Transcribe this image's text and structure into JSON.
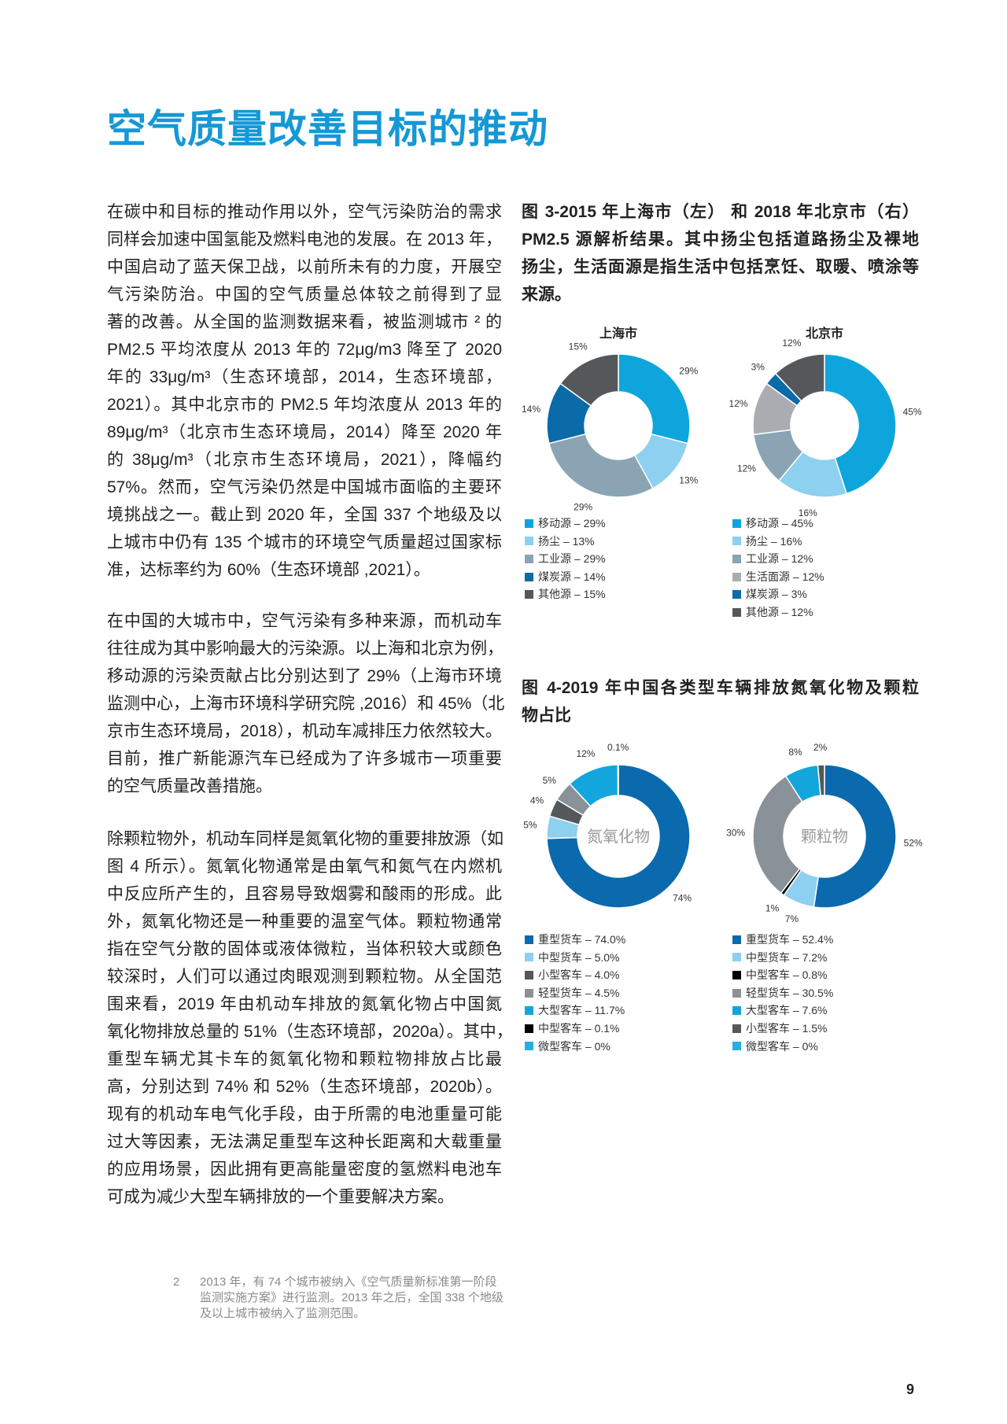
{
  "title": "空气质量改善目标的推动",
  "body": {
    "paragraphs": [
      [
        "在碳中和目标的推动作用以外，空气污染防治的需求",
        "同样会加速中国氢能及燃料电池的发展。在 2013 年，",
        "中国启动了蓝天保卫战，以前所未有的力度，开展空",
        "气污染防治。中国的空气质量总体较之前得到了显",
        "著的改善。从全国的监测数据来看，被监测城市 ² 的",
        "PM2.5 平均浓度从 2013 年的 72μg/m3 降至了 2020",
        "年的 33μg/m³（生态环境部，2014，生态环境部，",
        "2021）。其中北京市的 PM2.5 年均浓度从 2013 年的",
        "89μg/m³（北京市生态环境局，2014）降至 2020 年",
        "的 38μg/m³（北京市生态环境局，2021），降幅约",
        "57%。然而，空气污染仍然是中国城市面临的主要环",
        "境挑战之一。截止到 2020 年，全国 337 个地级及以",
        "上城市中仍有 135 个城市的环境空气质量超过国家标",
        "准，达标率约为 60%（生态环境部 ,2021）。"
      ],
      [
        "在中国的大城市中，空气污染有多种来源，而机动车",
        "往往成为其中影响最大的污染源。以上海和北京为例，",
        "移动源的污染贡献占比分别达到了 29%（上海市环境",
        "监测中心，上海市环境科学研究院 ,2016）和 45%（北",
        "京市生态环境局，2018），机动车减排压力依然较大。",
        "目前，推广新能源汽车已经成为了许多城市一项重要",
        "的空气质量改善措施。"
      ],
      [
        "除颗粒物外，机动车同样是氮氧化物的重要排放源（如",
        "图 4 所示）。氮氧化物通常是由氧气和氮气在内燃机",
        "中反应所产生的，且容易导致烟雾和酸雨的形成。此",
        "外，氮氧化物还是一种重要的温室气体。颗粒物通常",
        "指在空气分散的固体或液体微粒，当体积较大或颜色",
        "较深时，人们可以通过肉眼观测到颗粒物。从全国范",
        "围来看，2019 年由机动车排放的氮氧化物占中国氮",
        "氧化物排放总量的 51%（生态环境部，2020a）。其中，",
        "重型车辆尤其卡车的氮氧化物和颗粒物排放占比最",
        "高，分别达到 74% 和 52%（生态环境部，2020b）。",
        "现有的机动车电气化手段，由于所需的电池重量可能",
        "过大等因素，无法满足重型车这种长距离和大载重量",
        "的应用场景，因此拥有更高能量密度的氢燃料电池车",
        "可成为减少大型车辆排放的一个重要解决方案。"
      ]
    ]
  },
  "fig3_caption": [
    "图 3-2015 年上海市（左） 和 2018 年北京市（右）",
    "PM2.5 源解析结果。其中扬尘包括道路扬尘及裸地",
    "扬尘，生活面源是指生活中包括烹饪、取暖、喷涂等",
    "来源。"
  ],
  "fig4_caption": [
    "图 4-2019 年中国各类型车辆排放氮氧化物及颗粒",
    "物占比"
  ],
  "footnote": {
    "number": "2",
    "text": "2013 年，有 74 个城市被纳入《空气质量新标准第一阶段监测实施方案》进行监测。2013 年之后，全国 338 个地级及以上城市被纳入了监测范围。"
  },
  "page_number": "9",
  "chart_data": [
    {
      "type": "pie",
      "title": "上海市",
      "center_label": "",
      "slices": [
        {
          "name": "移动源",
          "value": 29,
          "label": "29%",
          "legend": "移动源 – 29%",
          "color": "#0ea5dc"
        },
        {
          "name": "扬尘",
          "value": 13,
          "label": "13%",
          "legend": "扬尘 – 13%",
          "color": "#8dd0ef"
        },
        {
          "name": "工业源",
          "value": 29,
          "label": "29%",
          "legend": "工业源 – 29%",
          "color": "#8aa4b3"
        },
        {
          "name": "煤炭源",
          "value": 14,
          "label": "14%",
          "legend": "煤炭源 – 14%",
          "color": "#0b6aa8"
        },
        {
          "name": "其他源",
          "value": 15,
          "label": "15%",
          "legend": "其他源 – 15%",
          "color": "#55585b"
        }
      ]
    },
    {
      "type": "pie",
      "title": "北京市",
      "center_label": "",
      "slices": [
        {
          "name": "移动源",
          "value": 45,
          "label": "45%",
          "legend": "移动源 – 45%",
          "color": "#0ea5dc"
        },
        {
          "name": "扬尘",
          "value": 16,
          "label": "16%",
          "legend": "扬尘 – 16%",
          "color": "#8dd0ef"
        },
        {
          "name": "工业源",
          "value": 12,
          "label": "12%",
          "legend": "工业源 – 12%",
          "color": "#8aa4b3"
        },
        {
          "name": "生活面源",
          "value": 12,
          "label": "12%",
          "legend": "生活面源 – 12%",
          "color": "#a9adb1"
        },
        {
          "name": "煤炭源",
          "value": 3,
          "label": "3%",
          "legend": "煤炭源 – 3%",
          "color": "#0b6aa8"
        },
        {
          "name": "其他源",
          "value": 12,
          "label": "12%",
          "legend": "其他源 – 12%",
          "color": "#55585b"
        }
      ]
    },
    {
      "type": "pie",
      "title": "",
      "center_label": "氮氧化物",
      "slices": [
        {
          "name": "重型货车",
          "value": 74.0,
          "label": "74%",
          "legend": "重型货车 – 74.0%",
          "color": "#0a6aad"
        },
        {
          "name": "中型货车",
          "value": 5.0,
          "label": "5%",
          "legend": "中型货车 – 5.0%",
          "color": "#8dd0ef"
        },
        {
          "name": "小型客车",
          "value": 4.0,
          "label": "4%",
          "legend": "小型客车 – 4.0%",
          "color": "#55585b"
        },
        {
          "name": "轻型货车",
          "value": 4.5,
          "label": "5%",
          "legend": "轻型货车 – 4.5%",
          "color": "#8a9299"
        },
        {
          "name": "大型客车",
          "value": 11.7,
          "label": "12%",
          "legend": "大型客车 – 11.7%",
          "color": "#12a6dc"
        },
        {
          "name": "中型客车",
          "value": 0.1,
          "label": "0.1%",
          "legend": "中型客车 – 0.1%",
          "color": "#000000"
        },
        {
          "name": "微型客车",
          "value": 0,
          "label": "",
          "legend": "微型客车 – 0%",
          "color": "#2aaee0"
        }
      ]
    },
    {
      "type": "pie",
      "title": "",
      "center_label": "颗粒物",
      "slices": [
        {
          "name": "重型货车",
          "value": 52.4,
          "label": "52%",
          "legend": "重型货车 – 52.4%",
          "color": "#0a6aad"
        },
        {
          "name": "中型货车",
          "value": 7.2,
          "label": "7%",
          "legend": "中型货车 – 7.2%",
          "color": "#8dd0ef"
        },
        {
          "name": "中型客车",
          "value": 0.8,
          "label": "1%",
          "legend": "中型客车 – 0.8%",
          "color": "#000000"
        },
        {
          "name": "轻型货车",
          "value": 30.5,
          "label": "30%",
          "legend": "轻型货车 – 30.5%",
          "color": "#8a9299"
        },
        {
          "name": "大型客车",
          "value": 7.6,
          "label": "8%",
          "legend": "大型客车 – 7.6%",
          "color": "#12a6dc"
        },
        {
          "name": "小型客车",
          "value": 1.5,
          "label": "2%",
          "legend": "小型客车 – 1.5%",
          "color": "#55585b"
        },
        {
          "name": "微型客车",
          "value": 0,
          "label": "",
          "legend": "微型客车 – 0%",
          "color": "#2aaee0"
        }
      ]
    }
  ]
}
